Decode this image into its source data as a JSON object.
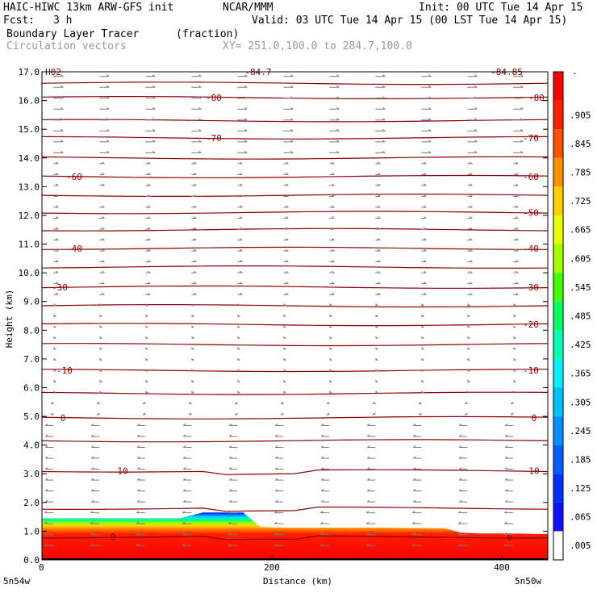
{
  "header": {
    "model": "HAIC-HIWC 13km ARW-GFS init",
    "org": "NCAR/MMM",
    "init": "Init: 00 UTC Tue 14 Apr 15",
    "fcst_label": "Fcst:",
    "fcst_value": "3 h",
    "valid": "Valid: 03 UTC Tue 14 Apr 15 (00 LST Tue 14 Apr 15)",
    "field": "Boundary Layer Tracer",
    "field_units": "(fraction)",
    "vectors": "Circulation vectors",
    "xy": "XY= 251.0,100.0 to 284.7,100.0"
  },
  "chart_data": {
    "type": "heatmap",
    "xlabel": "Distance (km)",
    "ylabel": "Height (km)",
    "xlim": [
      0,
      440
    ],
    "ylim": [
      0,
      17
    ],
    "x_ticks": [
      0,
      200,
      400
    ],
    "y_ticks": [
      "0.0",
      "1.0",
      "2.0",
      "3.0",
      "4.0",
      "5.0",
      "6.0",
      "7.0",
      "8.0",
      "9.0",
      "10.0",
      "11.0",
      "12.0",
      "13.0",
      "14.0",
      "15.0",
      "16.0",
      "17.0"
    ],
    "x_endpoints": {
      "left": "5n54w",
      "right": "5n50w"
    },
    "tracer_top_km": {
      "x": [
        0,
        60,
        120,
        140,
        175,
        190,
        210,
        250,
        300,
        350,
        365,
        380,
        400,
        440
      ],
      "top": [
        1.45,
        1.45,
        1.45,
        1.65,
        1.65,
        1.15,
        1.12,
        1.12,
        1.12,
        1.1,
        0.95,
        0.92,
        0.92,
        0.9
      ]
    },
    "isotherms": {
      "label_values": [
        "-80",
        "-70",
        "-60",
        "-50",
        "-40",
        "-30",
        "-20",
        "-10",
        "0",
        "10",
        "0"
      ],
      "lines_km": [
        16.6,
        16.1,
        15.3,
        14.7,
        14.0,
        13.35,
        12.7,
        12.1,
        11.5,
        10.85,
        10.2,
        9.5,
        8.85,
        8.2,
        7.5,
        6.6,
        5.8,
        4.95,
        4.15,
        3.1,
        1.8,
        0.8
      ]
    },
    "colorbar": {
      "labels": [
        ".005",
        ".065",
        ".125",
        ".185",
        ".245",
        ".305",
        ".365",
        ".425",
        ".485",
        ".545",
        ".605",
        ".665",
        ".725",
        ".785",
        ".845",
        ".905"
      ],
      "top_mark": "-"
    },
    "partial_top_labels": [
      "H02",
      "-84.7",
      "-84.85"
    ]
  }
}
